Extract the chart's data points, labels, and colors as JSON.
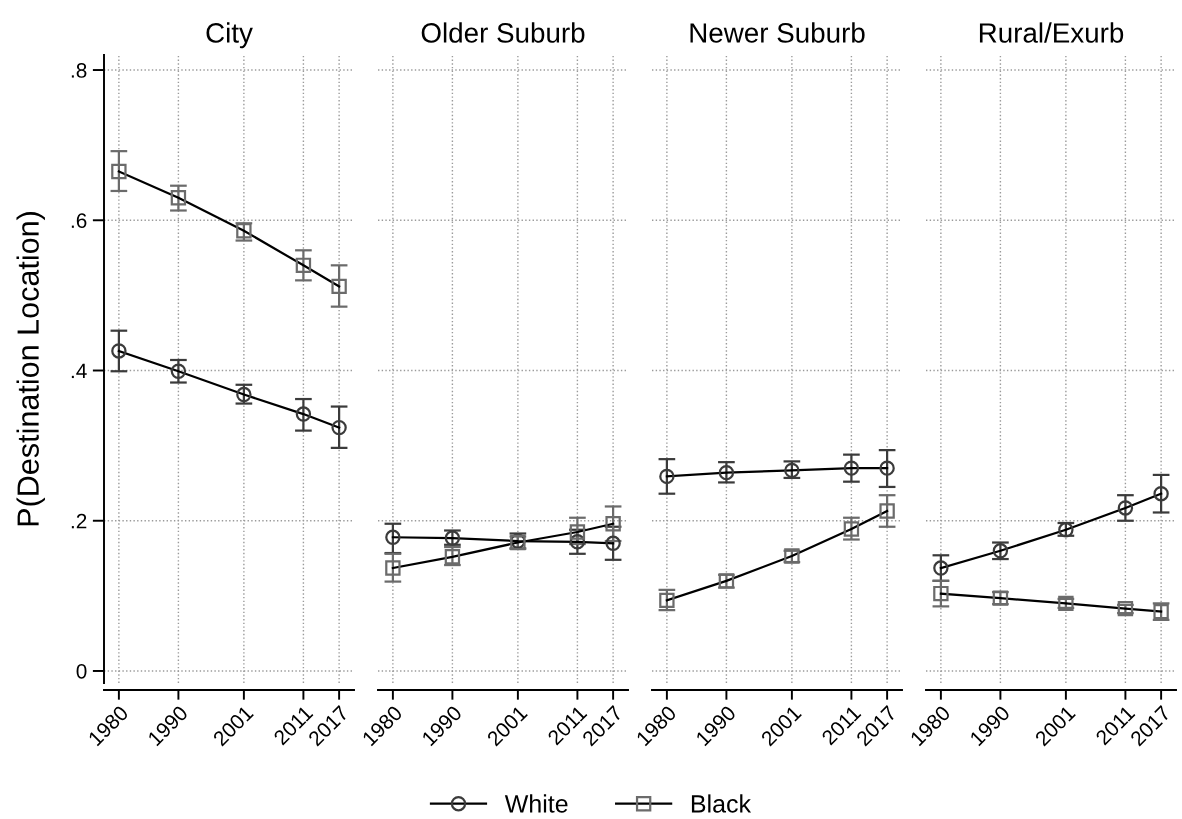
{
  "chart_data": [
    {
      "type": "line",
      "title": "City",
      "ylabel": "P(Destination Location)",
      "x": [
        1980,
        1990,
        2001,
        2011,
        2017
      ],
      "xlim": [
        1977.5,
        2019.5
      ],
      "xticks": [
        1980,
        1990,
        2001,
        2011,
        2017
      ],
      "ylim": [
        -0.016,
        0.82
      ],
      "yticks": [
        0,
        {
          "value": 0.2,
          "label": ".2"
        },
        {
          "value": 0.4,
          "label": ".4"
        },
        {
          "value": 0.6,
          "label": ".6"
        },
        {
          "value": 0.8,
          "label": ".8"
        }
      ],
      "grid": true,
      "legend": "bottom",
      "series": [
        {
          "name": "White",
          "color": "#3b3b3b",
          "marker": "circle",
          "values": [
            0.426,
            0.399,
            0.368,
            0.342,
            0.324
          ],
          "errors": [
            [
              0.399,
              0.453
            ],
            [
              0.384,
              0.414
            ],
            [
              0.356,
              0.381
            ],
            [
              0.32,
              0.362
            ],
            [
              0.297,
              0.352
            ]
          ]
        },
        {
          "name": "Black",
          "color": "#6b6b6b",
          "marker": "square",
          "values": [
            0.665,
            0.63,
            0.586,
            0.54,
            0.512
          ],
          "errors": [
            [
              0.639,
              0.692
            ],
            [
              0.613,
              0.646
            ],
            [
              0.573,
              0.596
            ],
            [
              0.52,
              0.56
            ],
            [
              0.485,
              0.54
            ]
          ]
        }
      ]
    },
    {
      "type": "line",
      "title": "Older Suburb",
      "x": [
        1980,
        1990,
        2001,
        2011,
        2017
      ],
      "xlim": [
        1977.5,
        2019.5
      ],
      "xticks": [
        1980,
        1990,
        2001,
        2011,
        2017
      ],
      "ylim": [
        -0.016,
        0.82
      ],
      "yticks": [
        {
          "value": 0,
          "label": null
        },
        {
          "value": 0.2,
          "label": null
        },
        {
          "value": 0.4,
          "label": null
        },
        {
          "value": 0.6,
          "label": null
        },
        {
          "value": 0.8,
          "label": null
        }
      ],
      "grid": true,
      "tick_labels": "x",
      "series": [
        {
          "name": "White",
          "color": "#3b3b3b",
          "marker": "circle",
          "values": [
            0.178,
            0.177,
            0.173,
            0.172,
            0.17
          ],
          "errors": [
            [
              0.157,
              0.196
            ],
            [
              0.168,
              0.187
            ],
            [
              0.163,
              0.183
            ],
            [
              0.156,
              0.188
            ],
            [
              0.148,
              0.192
            ]
          ]
        },
        {
          "name": "Black",
          "color": "#6b6b6b",
          "marker": "square",
          "values": [
            0.137,
            0.152,
            0.171,
            0.185,
            0.196
          ],
          "errors": [
            [
              0.119,
              0.156
            ],
            [
              0.141,
              0.165
            ],
            [
              0.163,
              0.179
            ],
            [
              0.169,
              0.204
            ],
            [
              0.173,
              0.219
            ]
          ]
        }
      ]
    },
    {
      "type": "line",
      "title": "Newer Suburb",
      "x": [
        1980,
        1990,
        2001,
        2011,
        2017
      ],
      "xlim": [
        1977.5,
        2019.5
      ],
      "xticks": [
        1980,
        1990,
        2001,
        2011,
        2017
      ],
      "ylim": [
        -0.016,
        0.82
      ],
      "yticks": [
        {
          "value": 0,
          "label": null
        },
        {
          "value": 0.2,
          "label": null
        },
        {
          "value": 0.4,
          "label": null
        },
        {
          "value": 0.6,
          "label": null
        },
        {
          "value": 0.8,
          "label": null
        }
      ],
      "grid": true,
      "tick_labels": "x",
      "series": [
        {
          "name": "White",
          "color": "#3b3b3b",
          "marker": "circle",
          "values": [
            0.259,
            0.264,
            0.267,
            0.27,
            0.27
          ],
          "errors": [
            [
              0.236,
              0.282
            ],
            [
              0.251,
              0.278
            ],
            [
              0.257,
              0.279
            ],
            [
              0.252,
              0.288
            ],
            [
              0.245,
              0.294
            ]
          ]
        },
        {
          "name": "Black",
          "color": "#6b6b6b",
          "marker": "square",
          "values": [
            0.094,
            0.12,
            0.153,
            0.189,
            0.213
          ],
          "errors": [
            [
              0.081,
              0.108
            ],
            [
              0.111,
              0.128
            ],
            [
              0.145,
              0.16
            ],
            [
              0.175,
              0.204
            ],
            [
              0.192,
              0.234
            ]
          ]
        }
      ]
    },
    {
      "type": "line",
      "title": "Rural/Exurb",
      "x": [
        1980,
        1990,
        2001,
        2011,
        2017
      ],
      "xlim": [
        1977.5,
        2019.5
      ],
      "xticks": [
        1980,
        1990,
        2001,
        2011,
        2017
      ],
      "ylim": [
        -0.016,
        0.82
      ],
      "yticks": [
        {
          "value": 0,
          "label": null
        },
        {
          "value": 0.2,
          "label": null
        },
        {
          "value": 0.4,
          "label": null
        },
        {
          "value": 0.6,
          "label": null
        },
        {
          "value": 0.8,
          "label": null
        }
      ],
      "grid": true,
      "tick_labels": "x",
      "series": [
        {
          "name": "White",
          "color": "#3b3b3b",
          "marker": "circle",
          "values": [
            0.137,
            0.16,
            0.188,
            0.217,
            0.236
          ],
          "errors": [
            [
              0.12,
              0.154
            ],
            [
              0.149,
              0.171
            ],
            [
              0.18,
              0.197
            ],
            [
              0.2,
              0.234
            ],
            [
              0.211,
              0.261
            ]
          ]
        },
        {
          "name": "Black",
          "color": "#6b6b6b",
          "marker": "square",
          "values": [
            0.103,
            0.097,
            0.09,
            0.083,
            0.079
          ],
          "errors": [
            [
              0.086,
              0.12
            ],
            [
              0.089,
              0.105
            ],
            [
              0.084,
              0.096
            ],
            [
              0.077,
              0.088
            ],
            [
              0.068,
              0.09
            ]
          ]
        }
      ]
    }
  ]
}
